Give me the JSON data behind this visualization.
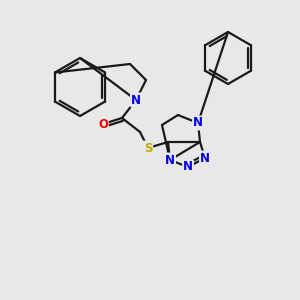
{
  "background_color": "#e8e8e8",
  "bond_color": "#1a1a1a",
  "atom_colors": {
    "N": "#0000ee",
    "O": "#ee0000",
    "S": "#bbaa00"
  },
  "figsize": [
    3.0,
    3.0
  ],
  "dpi": 100,
  "lw": 1.6,
  "fontsize": 8.5
}
